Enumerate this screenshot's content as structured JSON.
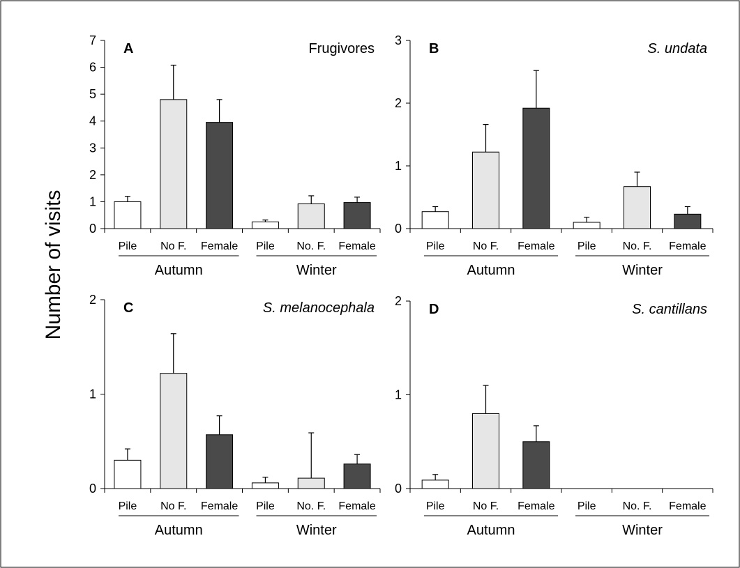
{
  "figure": {
    "ylabel": "Number of visits",
    "colors": {
      "Pile": "#ffffff",
      "No F.": "#e6e6e6",
      "Female": "#4a4a4a",
      "Female-alt": "#404040"
    }
  },
  "chart_data": [
    {
      "type": "bar",
      "panel": "A",
      "title": "Frugivores",
      "title_italic": false,
      "groups": [
        "Autumn",
        "Winter"
      ],
      "categories": [
        "Pile",
        "No F.",
        "Female"
      ],
      "category_labels": {
        "Autumn": [
          "Pile",
          "No F.",
          "Female"
        ],
        "Winter": [
          "Pile",
          "No. F.",
          "Female"
        ]
      },
      "series": [
        {
          "name": "Autumn",
          "values": [
            1.0,
            4.8,
            3.95
          ],
          "errors": [
            0.2,
            1.28,
            0.85
          ]
        },
        {
          "name": "Winter",
          "values": [
            0.25,
            0.92,
            0.97
          ],
          "errors": [
            0.07,
            0.3,
            0.2
          ]
        }
      ],
      "ylim": [
        0,
        7
      ],
      "yticks": [
        0,
        1,
        2,
        3,
        4,
        5,
        6,
        7
      ]
    },
    {
      "type": "bar",
      "panel": "B",
      "title": "S. undata",
      "title_italic": true,
      "groups": [
        "Autumn",
        "Winter"
      ],
      "categories": [
        "Pile",
        "No F.",
        "Female"
      ],
      "category_labels": {
        "Autumn": [
          "Pile",
          "No F.",
          "Female"
        ],
        "Winter": [
          "Pile",
          "No. F.",
          "Female"
        ]
      },
      "series": [
        {
          "name": "Autumn",
          "values": [
            0.27,
            1.22,
            1.92
          ],
          "errors": [
            0.08,
            0.44,
            0.6
          ]
        },
        {
          "name": "Winter",
          "values": [
            0.1,
            0.67,
            0.23
          ],
          "errors": [
            0.08,
            0.23,
            0.12
          ]
        }
      ],
      "ylim": [
        0,
        3
      ],
      "yticks": [
        0,
        1,
        2,
        3
      ]
    },
    {
      "type": "bar",
      "panel": "C",
      "title": "S. melanocephala",
      "title_italic": true,
      "groups": [
        "Autumn",
        "Winter"
      ],
      "categories": [
        "Pile",
        "No F.",
        "Female"
      ],
      "category_labels": {
        "Autumn": [
          "Pile",
          "No F.",
          "Female"
        ],
        "Winter": [
          "Pile",
          "No. F.",
          "Female"
        ]
      },
      "series": [
        {
          "name": "Autumn",
          "values": [
            0.3,
            1.22,
            0.57
          ],
          "errors": [
            0.12,
            0.42,
            0.2
          ]
        },
        {
          "name": "Winter",
          "values": [
            0.06,
            0.11,
            0.26
          ],
          "errors": [
            0.06,
            0.48,
            0.1
          ]
        }
      ],
      "ylim": [
        0,
        2
      ],
      "yticks": [
        0,
        1,
        2
      ]
    },
    {
      "type": "bar",
      "panel": "D",
      "title": "S. cantillans",
      "title_italic": true,
      "groups": [
        "Autumn",
        "Winter"
      ],
      "categories": [
        "Pile",
        "No F.",
        "Female"
      ],
      "category_labels": {
        "Autumn": [
          "Pile",
          "No F.",
          "Female"
        ],
        "Winter": [
          "Pile",
          "No. F.",
          "Female"
        ]
      },
      "series": [
        {
          "name": "Autumn",
          "values": [
            0.09,
            0.8,
            0.5
          ],
          "errors": [
            0.06,
            0.3,
            0.17
          ]
        },
        {
          "name": "Winter",
          "values": [
            0,
            0,
            0
          ],
          "errors": [
            0,
            0,
            0
          ]
        }
      ],
      "ylim": [
        0,
        2
      ],
      "yticks": [
        0,
        1,
        2
      ]
    }
  ]
}
